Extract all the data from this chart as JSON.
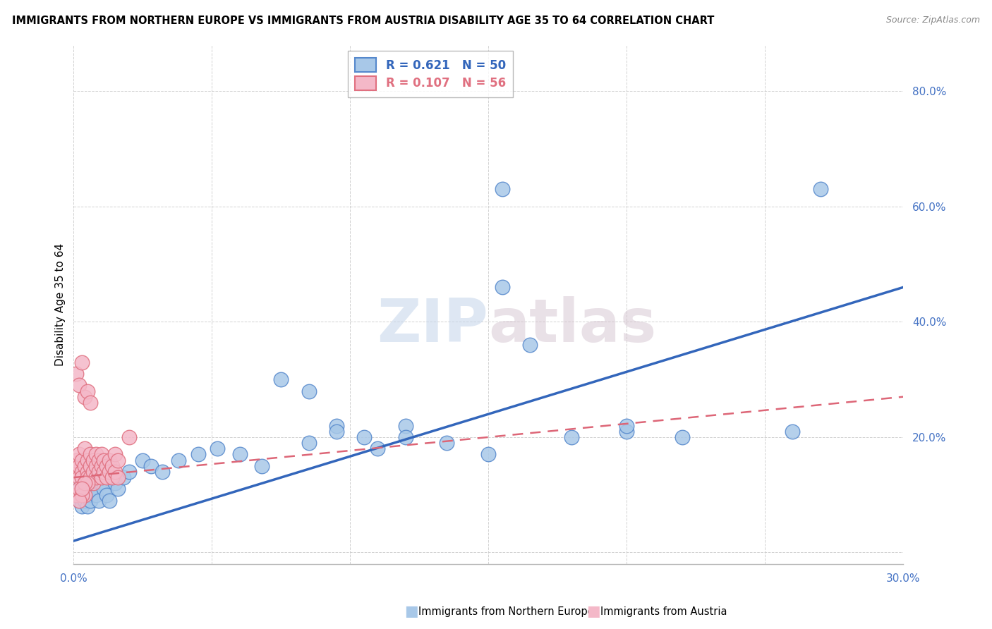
{
  "title": "IMMIGRANTS FROM NORTHERN EUROPE VS IMMIGRANTS FROM AUSTRIA DISABILITY AGE 35 TO 64 CORRELATION CHART",
  "source": "Source: ZipAtlas.com",
  "ylabel": "Disability Age 35 to 64",
  "xlim": [
    0.0,
    0.3
  ],
  "ylim": [
    -0.02,
    0.88
  ],
  "yticks": [
    0.0,
    0.2,
    0.4,
    0.6,
    0.8
  ],
  "xticks": [
    0.0,
    0.05,
    0.1,
    0.15,
    0.2,
    0.25,
    0.3
  ],
  "xtick_labels": [
    "0.0%",
    "",
    "",
    "",
    "",
    "",
    "30.0%"
  ],
  "ytick_labels": [
    "",
    "20.0%",
    "40.0%",
    "60.0%",
    "80.0%"
  ],
  "blue_R": 0.621,
  "blue_N": 50,
  "pink_R": 0.107,
  "pink_N": 56,
  "blue_fill_color": "#A8C8E8",
  "pink_fill_color": "#F4B8C8",
  "blue_edge_color": "#5588CC",
  "pink_edge_color": "#E07080",
  "blue_line_color": "#3366BB",
  "pink_line_color": "#DD6677",
  "tick_color": "#4472C4",
  "watermark_color": "#D8E4F0",
  "blue_scatter_x": [
    0.001,
    0.002,
    0.002,
    0.003,
    0.003,
    0.004,
    0.004,
    0.005,
    0.005,
    0.006,
    0.006,
    0.007,
    0.008,
    0.009,
    0.01,
    0.011,
    0.012,
    0.013,
    0.015,
    0.016,
    0.018,
    0.02,
    0.025,
    0.028,
    0.032,
    0.038,
    0.045,
    0.052,
    0.06,
    0.068,
    0.075,
    0.085,
    0.095,
    0.105,
    0.12,
    0.135,
    0.15,
    0.155,
    0.165,
    0.12,
    0.085,
    0.095,
    0.11,
    0.18,
    0.2,
    0.22,
    0.155,
    0.2,
    0.27,
    0.26
  ],
  "blue_scatter_y": [
    0.1,
    0.09,
    0.11,
    0.08,
    0.12,
    0.1,
    0.09,
    0.11,
    0.08,
    0.1,
    0.09,
    0.11,
    0.1,
    0.09,
    0.12,
    0.11,
    0.1,
    0.09,
    0.12,
    0.11,
    0.13,
    0.14,
    0.16,
    0.15,
    0.14,
    0.16,
    0.17,
    0.18,
    0.17,
    0.15,
    0.3,
    0.28,
    0.22,
    0.2,
    0.22,
    0.19,
    0.17,
    0.46,
    0.36,
    0.2,
    0.19,
    0.21,
    0.18,
    0.2,
    0.21,
    0.2,
    0.63,
    0.22,
    0.63,
    0.21
  ],
  "pink_scatter_x": [
    0.001,
    0.001,
    0.002,
    0.002,
    0.002,
    0.003,
    0.003,
    0.003,
    0.004,
    0.004,
    0.004,
    0.005,
    0.005,
    0.005,
    0.006,
    0.006,
    0.006,
    0.007,
    0.007,
    0.007,
    0.008,
    0.008,
    0.008,
    0.009,
    0.009,
    0.01,
    0.01,
    0.01,
    0.011,
    0.011,
    0.012,
    0.012,
    0.013,
    0.013,
    0.014,
    0.014,
    0.015,
    0.015,
    0.016,
    0.016,
    0.001,
    0.002,
    0.003,
    0.004,
    0.005,
    0.006,
    0.02,
    0.003,
    0.004,
    0.005,
    0.001,
    0.002,
    0.003,
    0.004,
    0.002,
    0.003
  ],
  "pink_scatter_y": [
    0.14,
    0.16,
    0.13,
    0.15,
    0.17,
    0.14,
    0.16,
    0.13,
    0.15,
    0.18,
    0.12,
    0.16,
    0.14,
    0.13,
    0.15,
    0.17,
    0.13,
    0.16,
    0.14,
    0.12,
    0.15,
    0.17,
    0.13,
    0.16,
    0.14,
    0.15,
    0.13,
    0.17,
    0.16,
    0.14,
    0.13,
    0.15,
    0.16,
    0.14,
    0.13,
    0.15,
    0.17,
    0.14,
    0.16,
    0.13,
    0.31,
    0.29,
    0.33,
    0.27,
    0.28,
    0.26,
    0.2,
    0.11,
    0.1,
    0.12,
    0.1,
    0.11,
    0.1,
    0.12,
    0.09,
    0.11
  ],
  "blue_trendline_x": [
    0.0,
    0.3
  ],
  "blue_trendline_y": [
    0.02,
    0.46
  ],
  "pink_trendline_x": [
    0.0,
    0.3
  ],
  "pink_trendline_y": [
    0.13,
    0.27
  ]
}
